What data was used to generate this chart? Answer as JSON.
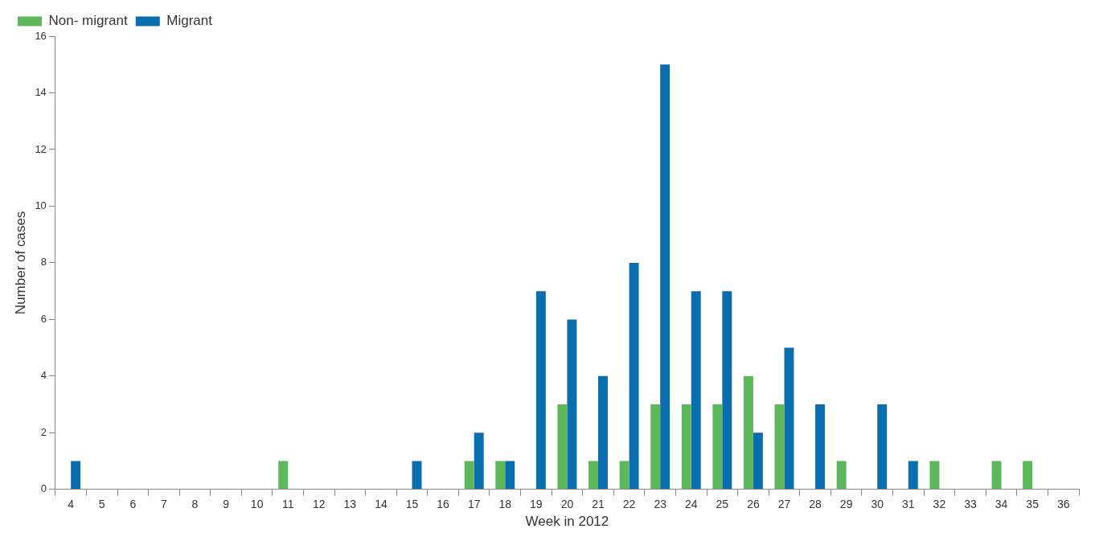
{
  "chart_data": {
    "type": "bar",
    "xlabel": "Week in 2012",
    "ylabel": "Number of cases",
    "categories": [
      "4",
      "5",
      "6",
      "7",
      "8",
      "9",
      "10",
      "11",
      "12",
      "13",
      "14",
      "15",
      "16",
      "17",
      "18",
      "19",
      "20",
      "21",
      "22",
      "23",
      "24",
      "25",
      "26",
      "27",
      "28",
      "29",
      "30",
      "31",
      "32",
      "33",
      "34",
      "35",
      "36"
    ],
    "series": [
      {
        "name": "Non- migrant",
        "color": "#5cb85a",
        "values": [
          0,
          0,
          0,
          0,
          0,
          0,
          0,
          1,
          0,
          0,
          0,
          0,
          0,
          1,
          1,
          0,
          3,
          1,
          1,
          3,
          3,
          3,
          4,
          3,
          0,
          1,
          0,
          0,
          1,
          0,
          1,
          1,
          0
        ]
      },
      {
        "name": "Migrant",
        "color": "#0a6eae",
        "values": [
          1,
          0,
          0,
          0,
          0,
          0,
          0,
          0,
          0,
          0,
          0,
          1,
          0,
          2,
          1,
          7,
          6,
          4,
          8,
          15,
          7,
          7,
          2,
          5,
          3,
          0,
          3,
          1,
          0,
          0,
          0,
          0,
          0
        ]
      }
    ],
    "ylim": [
      0,
      16
    ],
    "yticks": [
      0,
      2,
      4,
      6,
      8,
      10,
      12,
      14,
      16
    ],
    "grid": false,
    "legend": "top left"
  }
}
